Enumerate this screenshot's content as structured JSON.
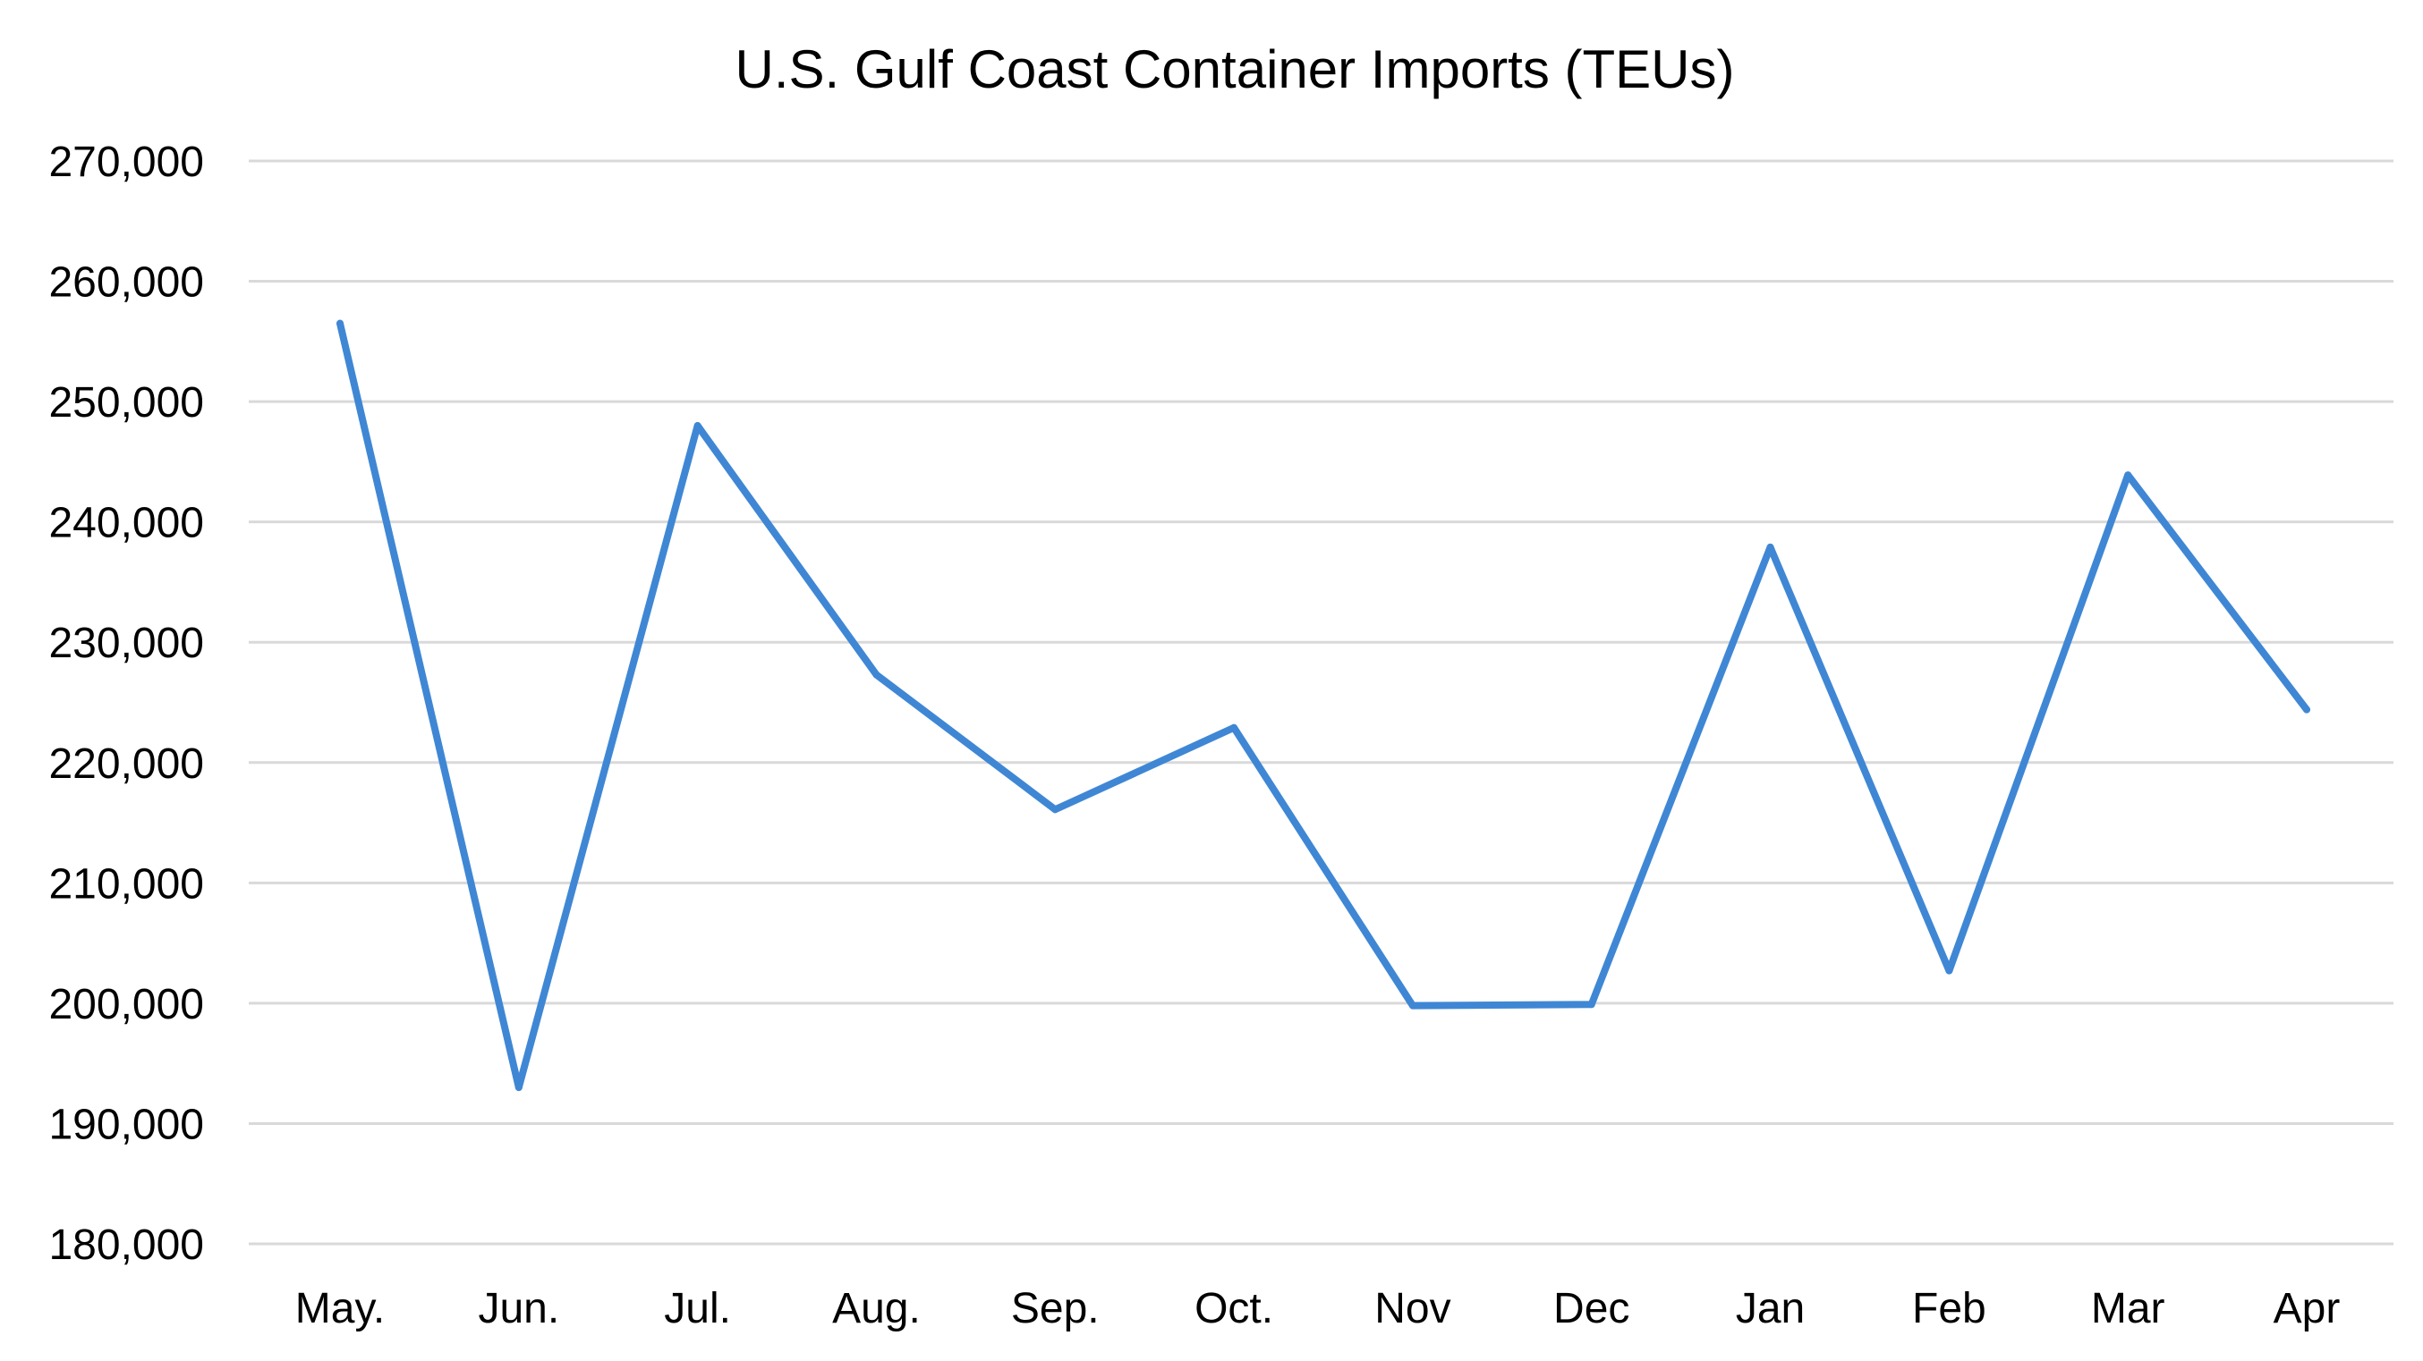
{
  "chart_data": {
    "type": "line",
    "title": "U.S. Gulf Coast Container Imports (TEUs)",
    "xlabel": "",
    "ylabel": "",
    "categories": [
      "May.",
      "Jun.",
      "Jul.",
      "Aug.",
      "Sep.",
      "Oct.",
      "Nov",
      "Dec",
      "Jan",
      "Feb",
      "Mar",
      "Apr"
    ],
    "series": [
      {
        "values": [
          256500,
          193000,
          248000,
          227300,
          216100,
          222900,
          199800,
          199900,
          237900,
          202700,
          243900,
          224400
        ],
        "color": "#3f87d4"
      }
    ],
    "ylim": [
      180000,
      270000
    ],
    "yticks": [
      180000,
      190000,
      200000,
      210000,
      220000,
      230000,
      240000,
      250000,
      260000,
      270000
    ],
    "ytick_labels": [
      "180,000",
      "190,000",
      "200,000",
      "210,000",
      "220,000",
      "230,000",
      "240,000",
      "250,000",
      "260,000",
      "270,000"
    ],
    "grid": true,
    "legend": "none"
  }
}
